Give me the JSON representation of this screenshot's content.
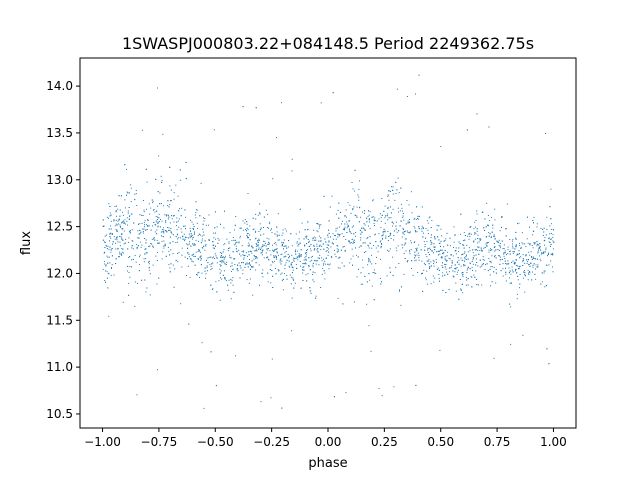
{
  "chart_data": {
    "type": "scatter",
    "title": "1SWASPJ000803.22+084148.5 Period 2249362.75s",
    "xlabel": "phase",
    "ylabel": "flux",
    "xlim": [
      -1.1,
      1.1
    ],
    "ylim": [
      10.35,
      14.3
    ],
    "x_ticks": [
      -1.0,
      -0.75,
      -0.5,
      -0.25,
      0.0,
      0.25,
      0.5,
      0.75,
      1.0
    ],
    "x_tick_labels": [
      "−1.00",
      "−0.75",
      "−0.50",
      "−0.25",
      "0.00",
      "0.25",
      "0.50",
      "0.75",
      "1.00"
    ],
    "y_ticks": [
      10.5,
      11.0,
      11.5,
      12.0,
      12.5,
      13.0,
      13.5,
      14.0
    ],
    "y_tick_labels": [
      "10.5",
      "11.0",
      "11.5",
      "12.0",
      "12.5",
      "13.0",
      "13.5",
      "14.0"
    ],
    "grid": false,
    "marker_color": "#1f77b4",
    "series": [
      {
        "x": [
          -1.0,
          -0.95,
          -0.9,
          -0.85,
          -0.8,
          -0.75,
          -0.7,
          -0.65,
          -0.6,
          -0.55,
          -0.5,
          -0.45,
          -0.4,
          -0.35,
          -0.3,
          -0.25,
          -0.2,
          -0.15,
          -0.1,
          -0.05,
          0.0,
          0.05,
          0.1,
          0.15,
          0.2,
          0.25,
          0.3,
          0.35,
          0.4,
          0.45,
          0.5,
          0.55,
          0.6,
          0.65,
          0.7,
          0.75,
          0.8,
          0.85,
          0.9,
          0.95,
          1.0
        ],
        "y": [
          12.25,
          12.4,
          12.5,
          12.35,
          12.3,
          12.55,
          12.5,
          12.4,
          12.35,
          12.3,
          12.2,
          12.1,
          12.2,
          12.25,
          12.3,
          12.25,
          12.2,
          12.15,
          12.2,
          12.25,
          12.3,
          12.4,
          12.5,
          12.35,
          12.3,
          12.55,
          12.5,
          12.4,
          12.35,
          12.3,
          12.2,
          12.1,
          12.2,
          12.25,
          12.3,
          12.25,
          12.2,
          12.15,
          12.2,
          12.25,
          12.3
        ]
      }
    ]
  }
}
